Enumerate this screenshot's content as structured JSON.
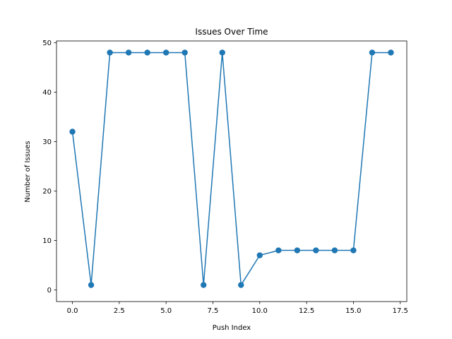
{
  "chart_data": {
    "type": "line",
    "title": "Issues Over Time",
    "xlabel": "Push Index",
    "ylabel": "Number of Issues",
    "xlim": [
      -0.85,
      17.85
    ],
    "ylim": [
      -2.35,
      50.35
    ],
    "xticks": [
      0,
      2.5,
      5,
      7.5,
      10,
      12.5,
      15,
      17.5
    ],
    "xtick_labels": [
      "0.0",
      "2.5",
      "5.0",
      "7.5",
      "10.0",
      "12.5",
      "15.0",
      "17.5"
    ],
    "yticks": [
      0,
      10,
      20,
      30,
      40,
      50
    ],
    "ytick_labels": [
      "0",
      "10",
      "20",
      "30",
      "40",
      "50"
    ],
    "grid": false,
    "series": [
      {
        "color": "#1f77b4",
        "marker": "circle",
        "x": [
          0,
          1,
          2,
          3,
          4,
          5,
          6,
          7,
          8,
          9,
          10,
          11,
          12,
          13,
          14,
          15,
          16,
          17
        ],
        "y": [
          32,
          1,
          48,
          48,
          48,
          48,
          48,
          1,
          48,
          1,
          7,
          8,
          8,
          8,
          8,
          8,
          48,
          48
        ]
      }
    ]
  }
}
